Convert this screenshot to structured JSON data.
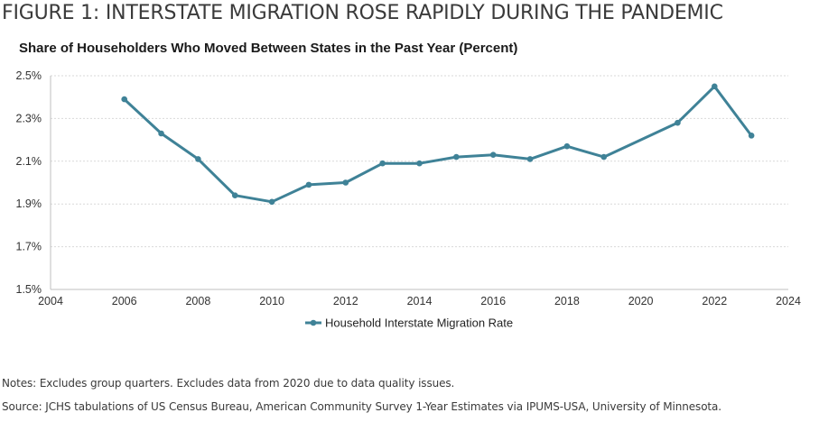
{
  "figure_title": "FIGURE 1: INTERSTATE MIGRATION ROSE RAPIDLY DURING THE PANDEMIC",
  "notes": "Notes: Excludes group quarters. Excludes data from 2020 due to data quality issues.",
  "source": "Source: JCHS tabulations of US Census Bureau, American Community Survey 1-Year Estimates via IPUMS-USA, University of Minnesota.",
  "chart_data": {
    "type": "line",
    "title": "Share of Householders Who Moved Between States in the Past Year (Percent)",
    "xlabel": "",
    "ylabel": "",
    "xlim": [
      2004,
      2024
    ],
    "ylim": [
      1.5,
      2.5
    ],
    "x_ticks": [
      2004,
      2006,
      2008,
      2010,
      2012,
      2014,
      2016,
      2018,
      2020,
      2022,
      2024
    ],
    "y_ticks": [
      1.5,
      1.7,
      1.9,
      2.1,
      2.3,
      2.5
    ],
    "y_tick_labels": [
      "1.5%",
      "1.7%",
      "1.9%",
      "2.1%",
      "2.3%",
      "2.5%"
    ],
    "grid": true,
    "legend": "bottom",
    "series": [
      {
        "name": "Household Interstate Migration Rate",
        "color": "#3f8297",
        "x": [
          2006,
          2007,
          2008,
          2009,
          2010,
          2011,
          2012,
          2013,
          2014,
          2015,
          2016,
          2017,
          2018,
          2019,
          2021,
          2022,
          2023
        ],
        "values": [
          2.39,
          2.23,
          2.11,
          1.94,
          1.91,
          1.99,
          2.0,
          2.09,
          2.09,
          2.12,
          2.13,
          2.11,
          2.17,
          2.12,
          2.28,
          2.45,
          2.22
        ]
      }
    ]
  }
}
